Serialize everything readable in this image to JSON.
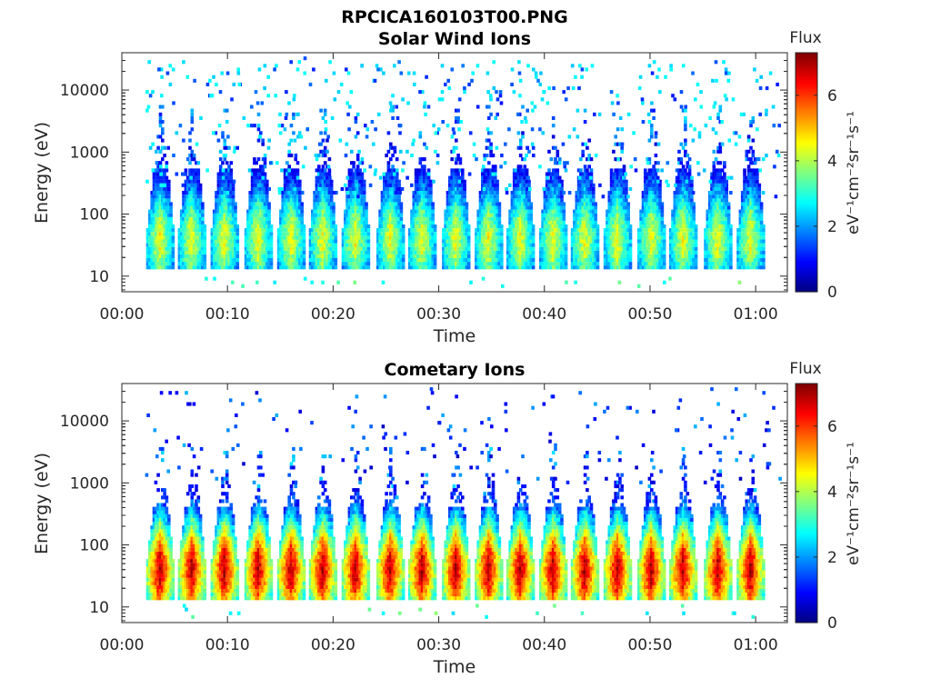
{
  "figure": {
    "title": "RPCICA160103T00.PNG"
  },
  "chart_data": [
    {
      "type": "heatmap",
      "title": "Solar Wind Ions",
      "xlabel": "Time",
      "ylabel": "Energy (eV)",
      "y_scale": "log",
      "x_unit": "minutes",
      "xlim": [
        0,
        63
      ],
      "ylim": [
        5.6,
        40000
      ],
      "x_ticks": [
        0,
        10,
        20,
        30,
        40,
        50,
        60
      ],
      "x_tick_labels": [
        "00:00",
        "00:10",
        "00:20",
        "00:30",
        "00:40",
        "00:50",
        "01:00"
      ],
      "y_ticks": [
        10,
        100,
        1000,
        10000
      ],
      "y_tick_labels": [
        "10",
        "100",
        "1000",
        "10000"
      ],
      "colorbar": {
        "title": "Flux",
        "label": "eV⁻¹cm⁻²sr⁻¹s⁻¹",
        "range": [
          0,
          7.3
        ],
        "ticks": [
          0,
          2,
          4,
          6
        ],
        "tick_labels": [
          "0",
          "2",
          "4",
          "6"
        ],
        "colormap": "jet"
      },
      "sweep_times_min": [
        3.5,
        6.5,
        9.6,
        12.8,
        15.9,
        18.9,
        22.0,
        25.3,
        28.3,
        31.5,
        34.6,
        37.6,
        40.7,
        43.7,
        46.8,
        50.0,
        53.0,
        56.3,
        59.4
      ],
      "peak_energy_eV": 40,
      "peak_flux": 4.5,
      "max_energy_eV": 3000,
      "background": "sparse blue/cyan counts 200–30000 eV",
      "grid": false
    },
    {
      "type": "heatmap",
      "title": "Cometary Ions",
      "xlabel": "Time",
      "ylabel": "Energy (eV)",
      "y_scale": "log",
      "x_unit": "minutes",
      "xlim": [
        0,
        63
      ],
      "ylim": [
        5.6,
        40000
      ],
      "x_ticks": [
        0,
        10,
        20,
        30,
        40,
        50,
        60
      ],
      "x_tick_labels": [
        "00:00",
        "00:10",
        "00:20",
        "00:30",
        "00:40",
        "00:50",
        "01:00"
      ],
      "y_ticks": [
        10,
        100,
        1000,
        10000
      ],
      "y_tick_labels": [
        "10",
        "100",
        "1000",
        "10000"
      ],
      "colorbar": {
        "title": "Flux",
        "label": "eV⁻¹cm⁻²sr⁻¹s⁻¹",
        "range": [
          0,
          7.3
        ],
        "ticks": [
          0,
          2,
          4,
          6
        ],
        "tick_labels": [
          "0",
          "2",
          "4",
          "6"
        ],
        "colormap": "jet"
      },
      "sweep_times_min": [
        3.5,
        6.5,
        9.6,
        12.8,
        15.9,
        18.9,
        22.0,
        25.3,
        28.3,
        31.5,
        34.6,
        37.6,
        40.7,
        43.7,
        46.8,
        50.0,
        53.0,
        56.3,
        59.4
      ],
      "peak_energy_eV": 40,
      "peak_flux": 7,
      "max_energy_eV": 2000,
      "background": "sparse blue counts 1000–20000 eV",
      "grid": false
    }
  ]
}
